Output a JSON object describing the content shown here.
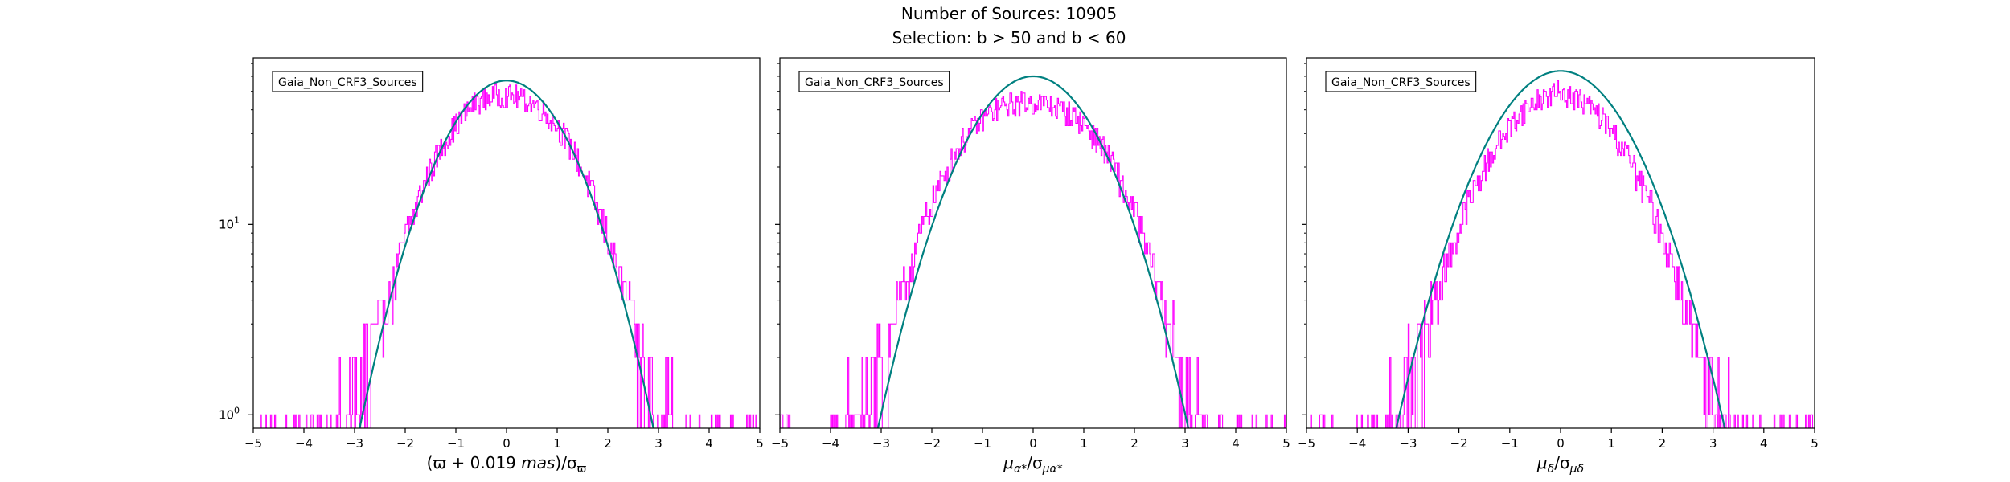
{
  "figure": {
    "title_line1": "Number of Sources: 10905",
    "title_line2": "Selection: b > 50 and b < 60"
  },
  "colors": {
    "histogram": "#ff00ff",
    "fit_curve": "#008080",
    "axes": "#000000"
  },
  "chart_data": [
    {
      "type": "line",
      "panel": "parallax",
      "legend_label": "Gaia_Non_CRF3_Sources",
      "legend_location": "upper-left",
      "xlabel": "(ϖ + 0.019 mas)/σϖ",
      "xlabel_main": "(ϖ + 0.019",
      "xlabel_unit": "mas",
      "xlabel_tail": ")/σ",
      "xlabel_sub": "ϖ",
      "xlim": [
        -5,
        5
      ],
      "ylim": [
        0.85,
        75
      ],
      "yscale": "log",
      "xticks": [
        "−5",
        "−4",
        "−3",
        "−2",
        "−1",
        "0",
        "1",
        "2",
        "3",
        "4",
        "5"
      ],
      "yticks": [
        {
          "value": 1,
          "label": "10",
          "exp": "0"
        },
        {
          "value": 10,
          "label": "10",
          "exp": "1"
        }
      ],
      "series": [
        {
          "kind": "histogram",
          "color": "#ff00ff",
          "x": [
            -4.6,
            -4.2,
            -3.8,
            -3.4,
            -3.0,
            -2.6,
            -2.2,
            -1.8,
            -1.4,
            -1.0,
            -0.6,
            -0.2,
            0.2,
            0.6,
            1.0,
            1.4,
            1.8,
            2.2,
            2.6,
            3.0,
            3.4,
            3.8,
            4.2
          ],
          "y": [
            1,
            1,
            1,
            1,
            1.6,
            2.5,
            5,
            12,
            22,
            33,
            44,
            48,
            47,
            42,
            33,
            22,
            12,
            5.5,
            2.5,
            1.4,
            1,
            1,
            1
          ]
        },
        {
          "kind": "gaussian",
          "color": "#008080",
          "amplitude": 57,
          "mu": 0,
          "sigma": 1
        }
      ]
    },
    {
      "type": "line",
      "panel": "pm_ra",
      "legend_label": "Gaia_Non_CRF3_Sources",
      "legend_location": "upper-left",
      "xlabel": "μα*/σμα*",
      "xlabel_main": "μ",
      "xlabel_sub": "α*",
      "xlabel_tail": "/σ",
      "xlabel_sub2": "μα*",
      "xlim": [
        -5,
        5
      ],
      "ylim": [
        0.85,
        75
      ],
      "yscale": "log",
      "xticks": [
        "−5",
        "−4",
        "−3",
        "−2",
        "−1",
        "0",
        "1",
        "2",
        "3",
        "4",
        "5"
      ],
      "yticks": [
        {
          "value": 1,
          "label": "10",
          "exp": "0"
        },
        {
          "value": 10,
          "label": "10",
          "exp": "1"
        }
      ],
      "series": [
        {
          "kind": "histogram",
          "color": "#ff00ff",
          "x": [
            -4.2,
            -3.8,
            -3.4,
            -3.0,
            -2.6,
            -2.2,
            -1.8,
            -1.4,
            -1.0,
            -0.6,
            -0.2,
            0.2,
            0.6,
            1.0,
            1.4,
            1.8,
            2.2,
            2.6,
            3.0,
            3.4,
            3.8,
            4.2,
            4.6
          ],
          "y": [
            1,
            1,
            1.2,
            2,
            4,
            9,
            17,
            27,
            36,
            42,
            44,
            43,
            40,
            34,
            25,
            15,
            8,
            3.5,
            1.6,
            1,
            1,
            1,
            1
          ]
        },
        {
          "kind": "gaussian",
          "color": "#008080",
          "amplitude": 60,
          "mu": 0,
          "sigma": 1.05
        }
      ]
    },
    {
      "type": "line",
      "panel": "pm_dec",
      "legend_label": "Gaia_Non_CRF3_Sources",
      "legend_location": "upper-left",
      "xlabel": "μδ/σμδ",
      "xlabel_main": "μ",
      "xlabel_sub": "δ",
      "xlabel_tail": "/σ",
      "xlabel_sub2": "μδ",
      "xlim": [
        -5,
        5
      ],
      "ylim": [
        0.85,
        75
      ],
      "yscale": "log",
      "xticks": [
        "−5",
        "−4",
        "−3",
        "−2",
        "−1",
        "0",
        "1",
        "2",
        "3",
        "4",
        "5"
      ],
      "yticks": [
        {
          "value": 1,
          "label": "10",
          "exp": "0"
        },
        {
          "value": 10,
          "label": "10",
          "exp": "1"
        }
      ],
      "series": [
        {
          "kind": "histogram",
          "color": "#ff00ff",
          "x": [
            -4.8,
            -4.4,
            -4.0,
            -3.6,
            -3.2,
            -2.8,
            -2.4,
            -2.0,
            -1.6,
            -1.2,
            -0.8,
            -0.4,
            0.0,
            0.4,
            0.8,
            1.2,
            1.6,
            2.0,
            2.4,
            2.8,
            3.2,
            3.6,
            4.0,
            4.4
          ],
          "y": [
            1,
            1,
            1,
            1,
            1.3,
            2.2,
            4.5,
            9,
            17,
            27,
            38,
            46,
            50,
            45,
            37,
            26,
            16,
            8.5,
            4,
            1.8,
            1.1,
            1,
            1,
            1
          ]
        },
        {
          "kind": "gaussian",
          "color": "#008080",
          "amplitude": 64,
          "mu": 0,
          "sigma": 1.1
        }
      ]
    }
  ]
}
